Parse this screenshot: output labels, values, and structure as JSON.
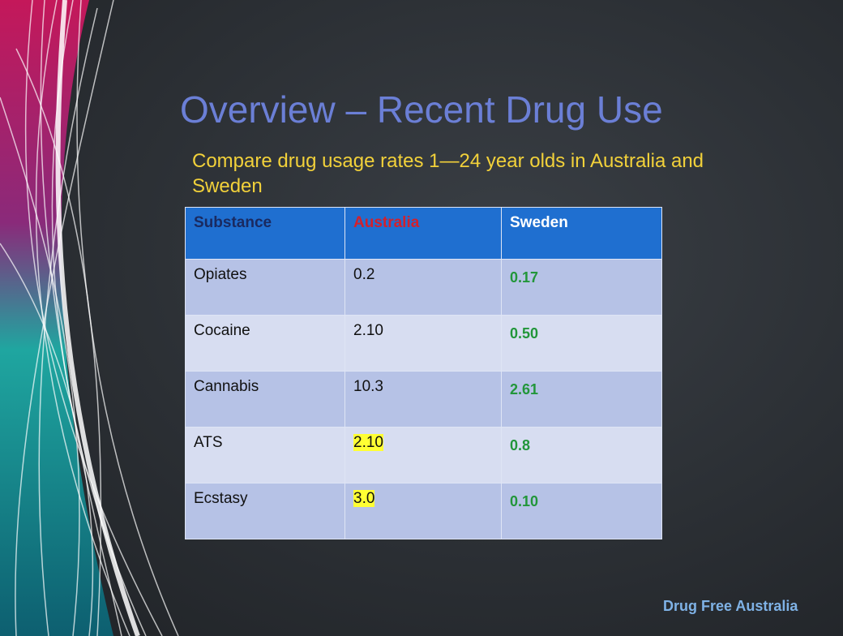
{
  "slide": {
    "title": "Overview – Recent Drug Use",
    "subtitle_lines": [
      "Compare  drug usage rates 1—24 year olds in Australia and",
      "Sweden"
    ],
    "table": {
      "header": [
        "Substance",
        "Australia",
        "Sweden"
      ],
      "rows": [
        [
          "Opiates",
          "0.2",
          "0.17"
        ],
        [
          "Cocaine",
          "2.10",
          "0.50"
        ],
        [
          "Cannabis",
          "10.3",
          "2.61"
        ],
        [
          "ATS",
          "2.10",
          "0.8"
        ],
        [
          "Ecstasy",
          "3.0",
          "0.10"
        ]
      ]
    },
    "footer": "Drug Free Australia"
  }
}
